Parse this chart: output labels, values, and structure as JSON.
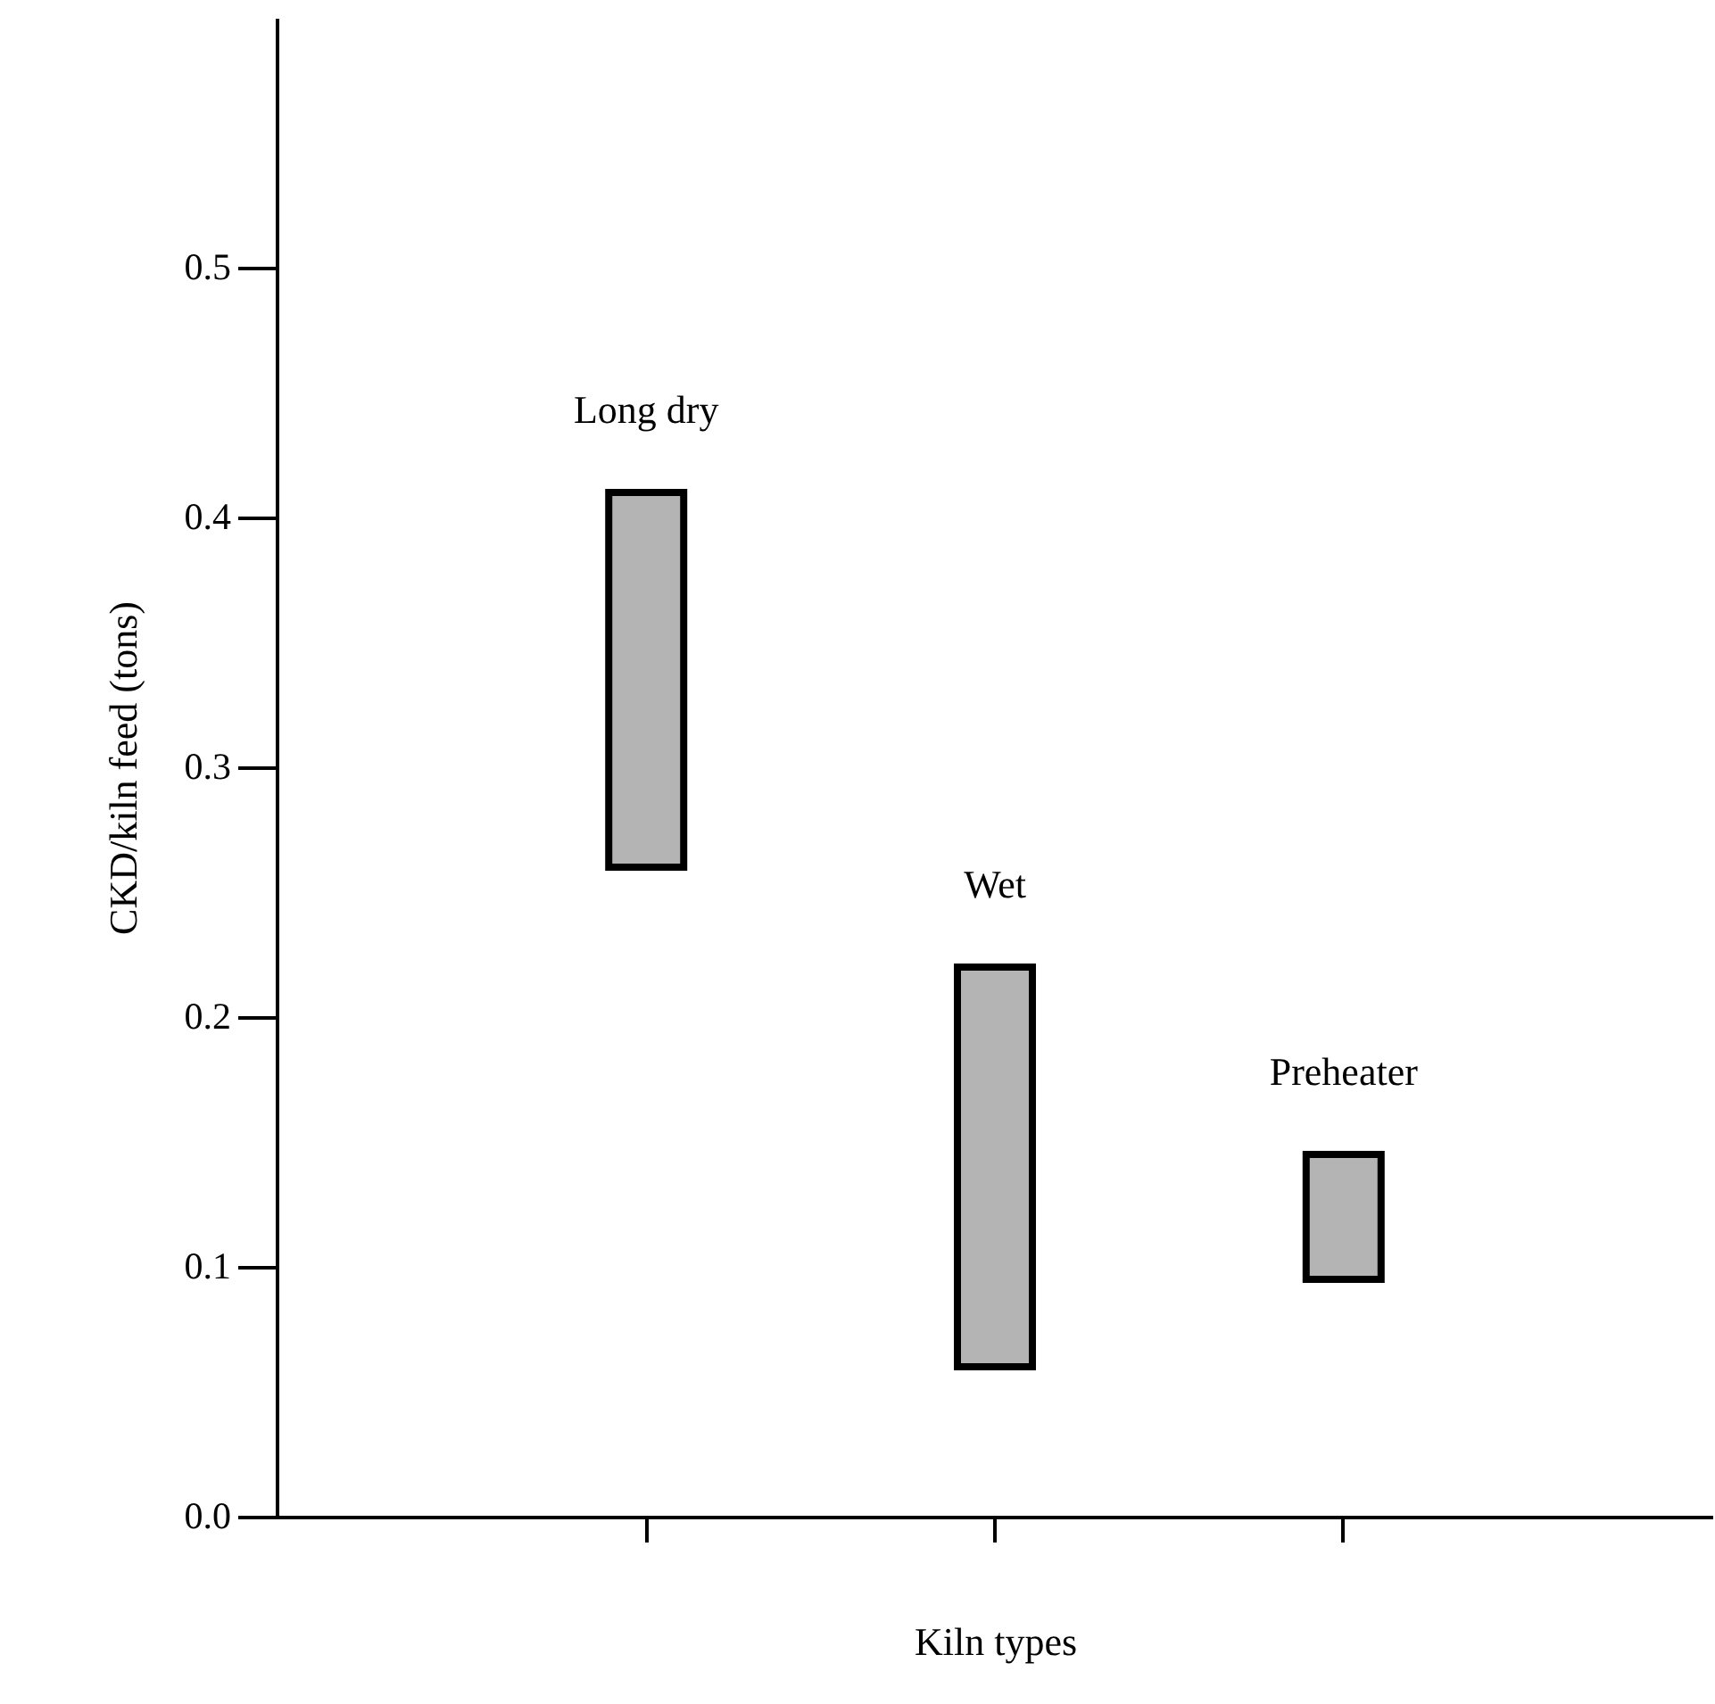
{
  "chart_data": {
    "type": "bar",
    "xlabel": "Kiln types",
    "ylabel": "CKD/kiln feed (tons)",
    "categories": [
      "Long dry",
      "Wet",
      "Preheater"
    ],
    "base": [
      0.26,
      0.06,
      0.095
    ],
    "values": [
      0.15,
      0.16,
      0.05
    ],
    "color": "#b4b4b4",
    "ylim": [
      0,
      0.6
    ],
    "yticks": [
      {
        "value": 0,
        "label": "0.0"
      },
      0.1,
      0.2,
      0.3,
      0.4,
      0.5
    ],
    "tick_labels": "y",
    "grid": false
  }
}
